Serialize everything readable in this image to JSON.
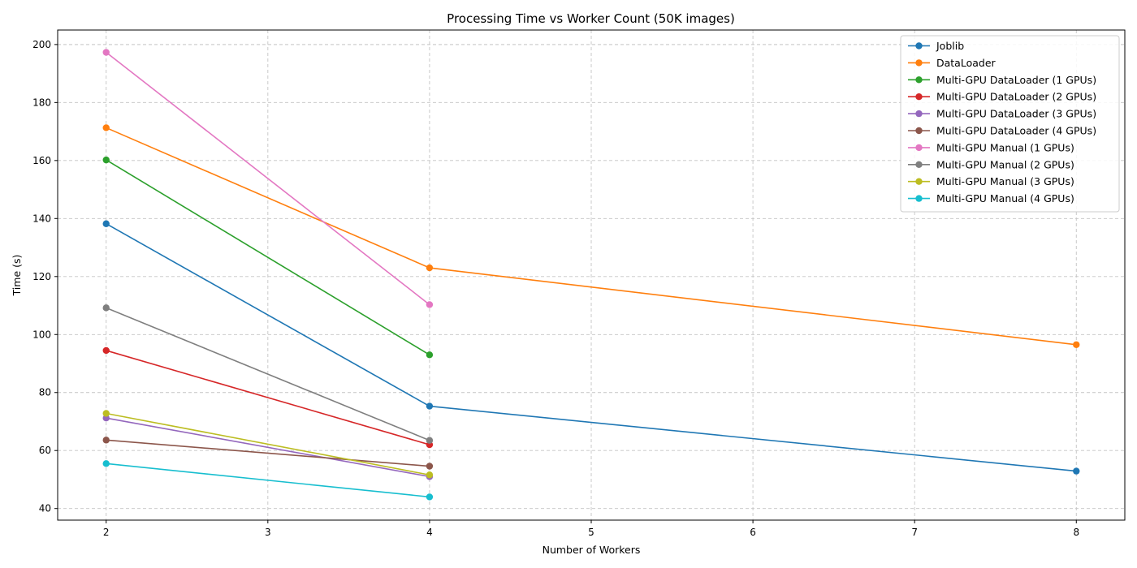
{
  "chart_data": {
    "type": "line",
    "title": "Processing Time vs Worker Count (50K images)",
    "xlabel": "Number of Workers",
    "ylabel": "Time (s)",
    "xlim": [
      1.7,
      8.3
    ],
    "ylim": [
      36,
      205
    ],
    "xticks": [
      2,
      3,
      4,
      5,
      6,
      7,
      8
    ],
    "yticks": [
      40,
      60,
      80,
      100,
      120,
      140,
      160,
      180,
      200
    ],
    "grid": true,
    "legend_position": "top-right",
    "series": [
      {
        "name": "Joblib",
        "color": "#1f77b4",
        "x": [
          2,
          4,
          8
        ],
        "y": [
          138.2,
          75.3,
          52.9
        ]
      },
      {
        "name": "DataLoader",
        "color": "#ff7f0e",
        "x": [
          2,
          4,
          8
        ],
        "y": [
          171.3,
          123.0,
          96.5
        ]
      },
      {
        "name": "Multi-GPU DataLoader (1 GPUs)",
        "color": "#2ca02c",
        "x": [
          2,
          4
        ],
        "y": [
          160.2,
          93.0
        ]
      },
      {
        "name": "Multi-GPU DataLoader (2 GPUs)",
        "color": "#d62728",
        "x": [
          2,
          4
        ],
        "y": [
          94.5,
          62.0
        ]
      },
      {
        "name": "Multi-GPU DataLoader (3 GPUs)",
        "color": "#9467bd",
        "x": [
          2,
          4
        ],
        "y": [
          71.2,
          51.0
        ]
      },
      {
        "name": "Multi-GPU DataLoader (4 GPUs)",
        "color": "#8c564b",
        "x": [
          2,
          4
        ],
        "y": [
          63.6,
          54.6
        ]
      },
      {
        "name": "Multi-GPU Manual (1 GPUs)",
        "color": "#e377c2",
        "x": [
          2,
          4
        ],
        "y": [
          197.3,
          110.3
        ]
      },
      {
        "name": "Multi-GPU Manual (2 GPUs)",
        "color": "#7f7f7f",
        "x": [
          2,
          4
        ],
        "y": [
          109.2,
          63.5
        ]
      },
      {
        "name": "Multi-GPU Manual (3 GPUs)",
        "color": "#bcbd22",
        "x": [
          2,
          4
        ],
        "y": [
          72.8,
          51.6
        ]
      },
      {
        "name": "Multi-GPU Manual (4 GPUs)",
        "color": "#17becf",
        "x": [
          2,
          4
        ],
        "y": [
          55.5,
          44.0
        ]
      }
    ]
  }
}
